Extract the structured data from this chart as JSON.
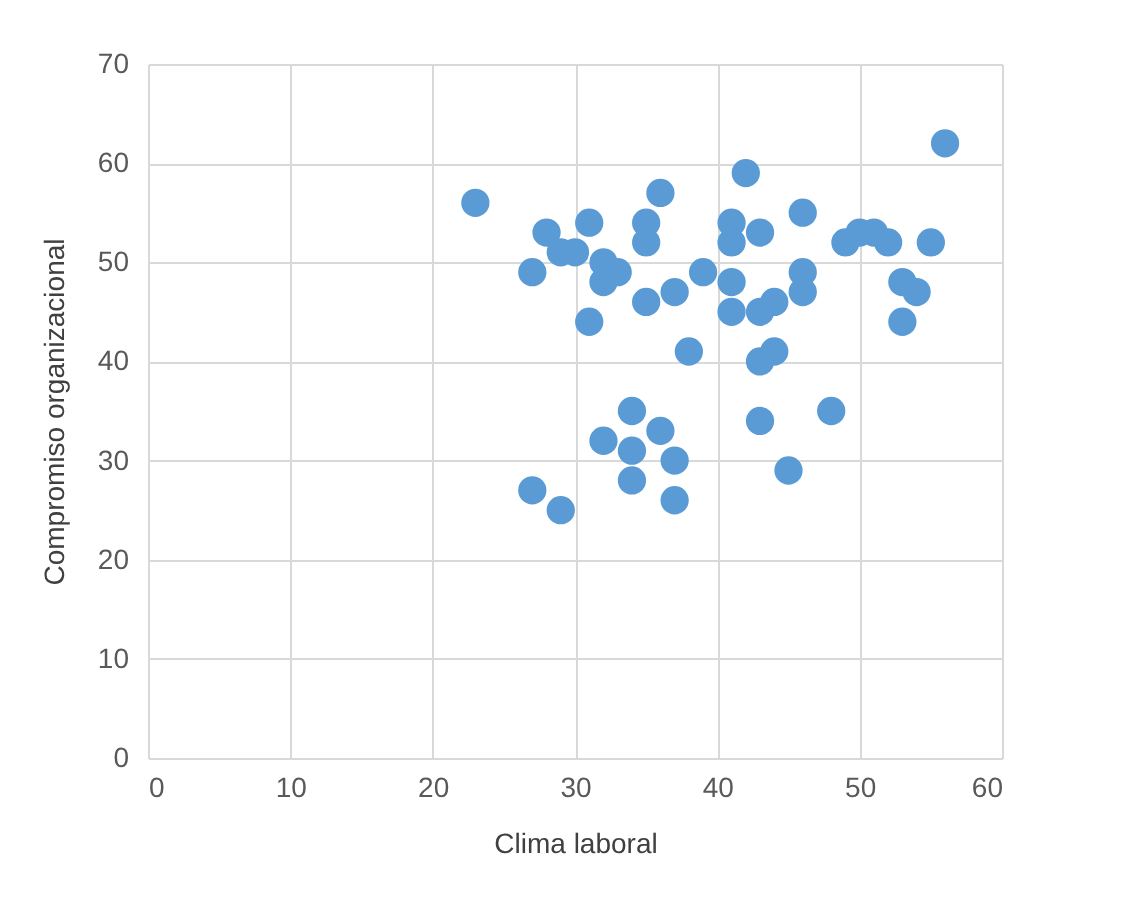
{
  "chart_data": {
    "type": "scatter",
    "xlabel": "Clima laboral",
    "ylabel": "Compromiso organizacional",
    "x": [
      23,
      27,
      28,
      29,
      30,
      31,
      31,
      32,
      32,
      33,
      35,
      35,
      35,
      36,
      37,
      38,
      39,
      41,
      41,
      41,
      41,
      42,
      43,
      43,
      43,
      44,
      44,
      46,
      46,
      46,
      49,
      50,
      51,
      52,
      53,
      54,
      53,
      55,
      56,
      27,
      29,
      32,
      34,
      34,
      34,
      36,
      37,
      37,
      43,
      45,
      48
    ],
    "series": [
      {
        "color": "#5b9bd5",
        "values": [
          56,
          49,
          53,
          51,
          51,
          54,
          44,
          48,
          50,
          49,
          54,
          52,
          46,
          57,
          47,
          41,
          49,
          54,
          52,
          48,
          45,
          59,
          53,
          45,
          40,
          46,
          41,
          55,
          49,
          47,
          52,
          53,
          53,
          52,
          48,
          47,
          44,
          52,
          62,
          27,
          25,
          32,
          35,
          31,
          28,
          33,
          30,
          26,
          34,
          29,
          35
        ]
      }
    ],
    "xlim": [
      0,
      60
    ],
    "xticks": [
      0,
      10,
      20,
      30,
      40,
      50,
      60
    ],
    "ylim": [
      0,
      70
    ],
    "yticks": [
      0,
      10,
      20,
      30,
      40,
      50,
      60,
      70
    ],
    "grid": true,
    "marker": "circle",
    "legend": false
  }
}
